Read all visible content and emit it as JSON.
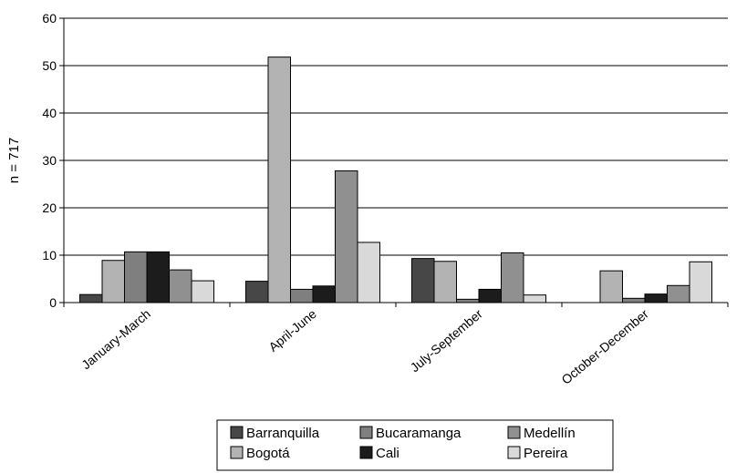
{
  "chart_data": {
    "type": "bar",
    "categories": [
      "January-March",
      "April-June",
      "July-September",
      "October-December"
    ],
    "series": [
      {
        "name": "Barranquilla",
        "color": "#474747",
        "values": [
          1.7,
          4.5,
          9.3,
          0
        ]
      },
      {
        "name": "Bogotá",
        "color": "#b3b3b3",
        "values": [
          8.9,
          51.8,
          8.7,
          6.7
        ]
      },
      {
        "name": "Bucaramanga",
        "color": "#7f7f7f",
        "values": [
          10.7,
          2.8,
          0.7,
          0.9
        ]
      },
      {
        "name": "Cali",
        "color": "#1c1c1c",
        "values": [
          10.7,
          3.5,
          2.8,
          1.8
        ]
      },
      {
        "name": "Medellín",
        "color": "#909090",
        "values": [
          6.9,
          27.8,
          10.5,
          3.6
        ]
      },
      {
        "name": "Pereira",
        "color": "#d9d9d9",
        "values": [
          4.6,
          12.7,
          1.6,
          8.6
        ]
      }
    ],
    "legend_order": [
      "Barranquilla",
      "Bucaramanga",
      "Medellín",
      "Bogotá",
      "Cali",
      "Pereira"
    ],
    "title": "",
    "xlabel": "",
    "ylabel": "n = 717",
    "ylim": [
      0,
      60
    ],
    "yticks": [
      "0",
      "10",
      "20",
      "30",
      "40",
      "50",
      "60"
    ],
    "grid": "horizontal",
    "legend_position": "bottom"
  }
}
